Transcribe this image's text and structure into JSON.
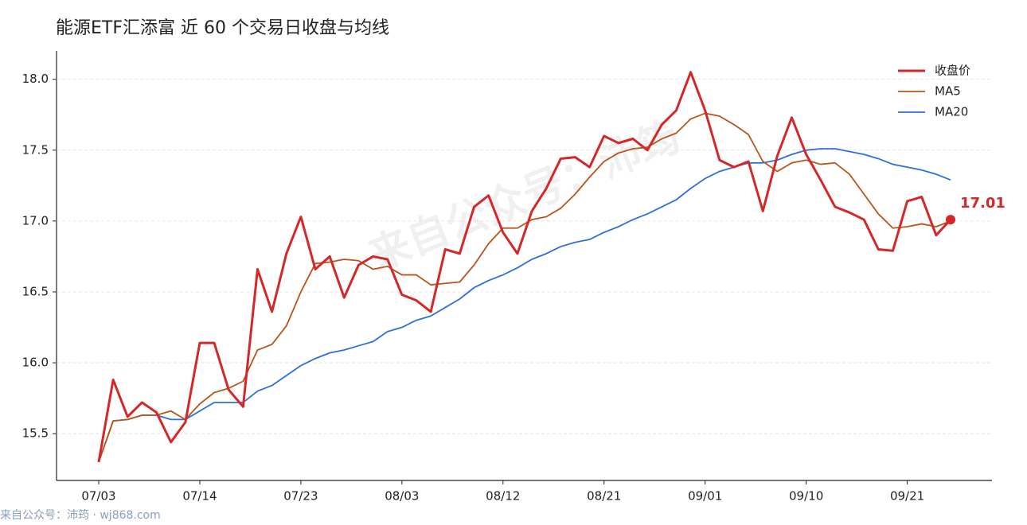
{
  "chart_data": {
    "type": "line",
    "title": "能源ETF汇添富 近 60 个交易日收盘与均线",
    "watermark": "来自公众号：沛筠",
    "footer": "来自公众号：沛筠 · wj868.com",
    "categories": [
      "07/03",
      null,
      null,
      null,
      null,
      null,
      null,
      "07/14",
      null,
      null,
      null,
      null,
      null,
      null,
      "07/23",
      null,
      null,
      null,
      null,
      null,
      null,
      "08/03",
      null,
      null,
      null,
      null,
      null,
      null,
      "08/12",
      null,
      null,
      null,
      null,
      null,
      null,
      "08/21",
      null,
      null,
      null,
      null,
      null,
      null,
      "09/01",
      null,
      null,
      null,
      null,
      null,
      null,
      "09/10",
      null,
      null,
      null,
      null,
      null,
      null,
      "09/21",
      null,
      null,
      null
    ],
    "series": [
      {
        "name": "收盘价",
        "color": "#d62728",
        "width": 3,
        "values": [
          15.3,
          15.88,
          15.62,
          15.72,
          15.65,
          15.44,
          15.58,
          16.14,
          16.14,
          15.81,
          15.69,
          16.66,
          16.36,
          16.77,
          17.03,
          16.66,
          16.75,
          16.46,
          16.69,
          16.75,
          16.73,
          16.48,
          16.44,
          16.36,
          16.8,
          16.77,
          17.1,
          17.18,
          16.92,
          16.77,
          17.07,
          17.23,
          17.44,
          17.45,
          17.38,
          17.6,
          17.55,
          17.58,
          17.5,
          17.68,
          17.78,
          18.05,
          17.78,
          17.43,
          17.38,
          17.42,
          17.07,
          17.46,
          17.73,
          17.47,
          17.29,
          17.1,
          17.06,
          17.01,
          16.8,
          16.79,
          17.14,
          17.17,
          16.9,
          17.01
        ]
      },
      {
        "name": "MA5",
        "color": "#b8561a",
        "width": 1.8,
        "values": [
          15.3,
          15.59,
          15.6,
          15.63,
          15.63,
          15.66,
          15.6,
          15.71,
          15.79,
          15.82,
          15.87,
          16.09,
          16.13,
          16.26,
          16.5,
          16.7,
          16.71,
          16.73,
          16.72,
          16.66,
          16.68,
          16.62,
          16.62,
          16.55,
          16.56,
          16.57,
          16.69,
          16.84,
          16.95,
          16.95,
          17.01,
          17.03,
          17.09,
          17.19,
          17.31,
          17.42,
          17.48,
          17.51,
          17.52,
          17.58,
          17.62,
          17.72,
          17.76,
          17.74,
          17.68,
          17.61,
          17.42,
          17.35,
          17.41,
          17.43,
          17.4,
          17.41,
          17.33,
          17.19,
          17.05,
          16.95,
          16.96,
          16.98,
          16.96,
          17.0
        ]
      },
      {
        "name": "MA20",
        "color": "#2f6fdc",
        "width": 1.8,
        "values": [
          15.3,
          15.59,
          15.6,
          15.63,
          15.63,
          15.6,
          15.6,
          15.66,
          15.72,
          15.72,
          15.72,
          15.8,
          15.84,
          15.91,
          15.98,
          16.03,
          16.07,
          16.09,
          16.12,
          16.15,
          16.22,
          16.25,
          16.3,
          16.33,
          16.39,
          16.45,
          16.53,
          16.58,
          16.62,
          16.67,
          16.73,
          16.77,
          16.82,
          16.85,
          16.87,
          16.92,
          16.96,
          17.01,
          17.05,
          17.1,
          17.15,
          17.23,
          17.3,
          17.35,
          17.38,
          17.41,
          17.41,
          17.43,
          17.47,
          17.5,
          17.51,
          17.51,
          17.49,
          17.47,
          17.44,
          17.4,
          17.38,
          17.36,
          17.33,
          17.29
        ]
      }
    ],
    "ylim": [
      15.17,
      18.2
    ],
    "yticks": [
      15.5,
      {
        "value": 16,
        "label": "16.0"
      },
      16.5,
      {
        "value": 17,
        "label": "17.0"
      },
      17.5,
      {
        "value": 18,
        "label": "18.0"
      }
    ],
    "grid": true,
    "legend": "upper right"
  }
}
